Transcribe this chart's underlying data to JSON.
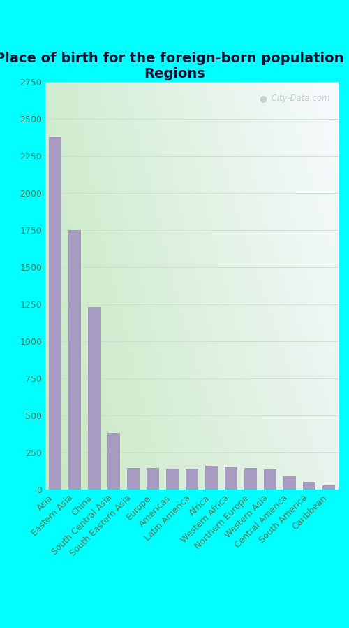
{
  "title": "Place of birth for the foreign-born population -\nRegions",
  "categories": [
    "Asia",
    "Eastern Asia",
    "China",
    "South Central Asia",
    "South Eastern Asia",
    "Europe",
    "Americas",
    "Latin America",
    "Africa",
    "Western Africa",
    "Northern Europe",
    "Western Asia",
    "Central America",
    "South America",
    "Caribbean"
  ],
  "values": [
    2375,
    1750,
    1230,
    385,
    150,
    148,
    145,
    145,
    162,
    155,
    148,
    140,
    92,
    52,
    28
  ],
  "bar_color": "#a89bc2",
  "background_color_outer": "#00ffff",
  "bg_corner_topleft": "#d8eed8",
  "bg_corner_topright": "#f5faff",
  "bg_corner_bottomleft": "#c8e8c8",
  "bg_corner_bottomright": "#e8f4f0",
  "ylim": [
    0,
    2750
  ],
  "yticks": [
    0,
    250,
    500,
    750,
    1000,
    1250,
    1500,
    1750,
    2000,
    2250,
    2500,
    2750
  ],
  "title_fontsize": 14,
  "tick_fontsize": 9,
  "axis_color": "#557755",
  "grid_color": "#ccddcc",
  "watermark": "City-Data.com",
  "bar_width": 0.65
}
